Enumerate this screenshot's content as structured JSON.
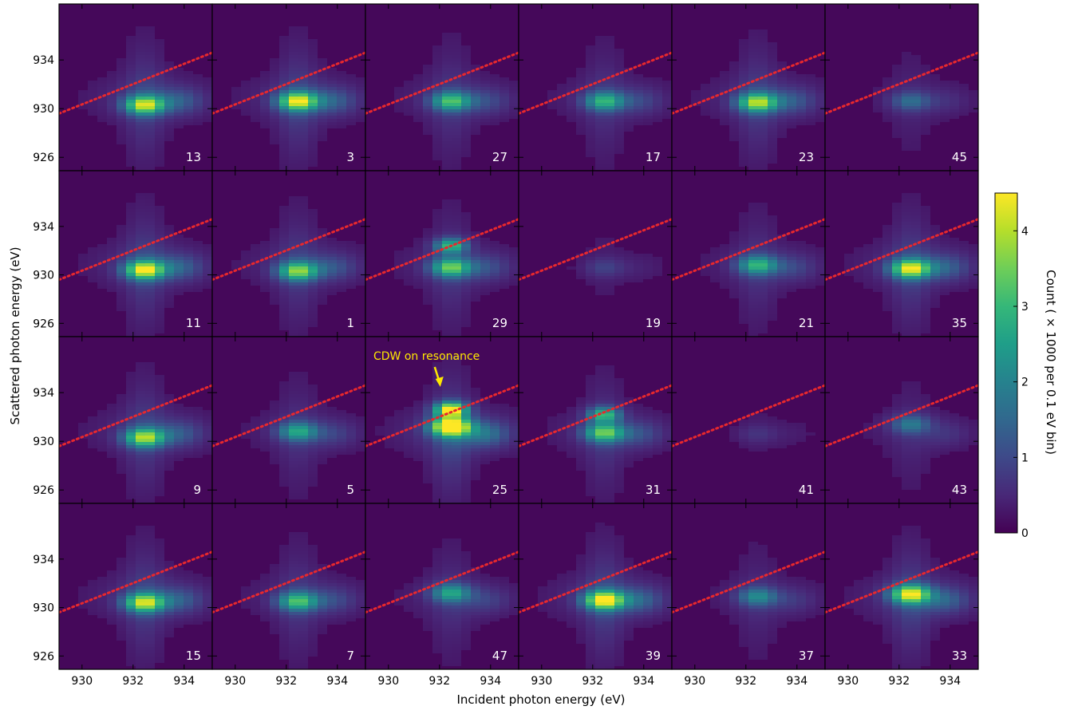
{
  "chart_data": {
    "type": "heatmap",
    "layout": "small-multiples grid, 4 rows x 6 columns",
    "xlabel": "Incident photon energy (eV)",
    "ylabel": "Scattered photon energy (eV)",
    "colorbar_label": "Count ( × 1000 per 0.1 eV bin)",
    "xlim": [
      929.1,
      935.1
    ],
    "ylim": [
      924.9,
      938.6
    ],
    "x_ticks": [
      "930",
      "932",
      "934"
    ],
    "y_ticks": [
      "934",
      "930",
      "926"
    ],
    "colorbar_ticks": [
      "0",
      "1",
      "2",
      "3",
      "4"
    ],
    "colorbar_range": [
      0,
      4.5
    ],
    "colormap": "viridis",
    "colorbar_colors": [
      "#440154",
      "#482878",
      "#3e4989",
      "#31688e",
      "#26828e",
      "#1f9e89",
      "#35b779",
      "#6ece58",
      "#b5de2b",
      "#fde725"
    ],
    "reference_line": {
      "style": "dotted",
      "color": "#e8282d",
      "x": [
        929.1,
        935.1
      ],
      "y": [
        929.6,
        934.6
      ]
    },
    "panels": [
      {
        "label": "13",
        "intensity": 0.75,
        "peak_y": 930.3,
        "upper_y": null
      },
      {
        "label": "3",
        "intensity": 0.78,
        "peak_y": 930.6,
        "upper_y": null
      },
      {
        "label": "27",
        "intensity": 0.55,
        "peak_y": 930.6,
        "upper_y": null
      },
      {
        "label": "17",
        "intensity": 0.5,
        "peak_y": 930.6,
        "upper_y": null
      },
      {
        "label": "23",
        "intensity": 0.7,
        "peak_y": 930.5,
        "upper_y": null
      },
      {
        "label": "45",
        "intensity": 0.25,
        "peak_y": 930.6,
        "upper_y": null
      },
      {
        "label": "11",
        "intensity": 0.8,
        "peak_y": 930.4,
        "upper_y": null
      },
      {
        "label": "1",
        "intensity": 0.65,
        "peak_y": 930.3,
        "upper_y": null
      },
      {
        "label": "29",
        "intensity": 0.6,
        "peak_y": 930.6,
        "upper_y": 932.4
      },
      {
        "label": "19",
        "intensity": 0.12,
        "peak_y": 930.6,
        "upper_y": null
      },
      {
        "label": "21",
        "intensity": 0.5,
        "peak_y": 930.8,
        "upper_y": null
      },
      {
        "label": "35",
        "intensity": 0.78,
        "peak_y": 930.5,
        "upper_y": null
      },
      {
        "label": "9",
        "intensity": 0.7,
        "peak_y": 930.3,
        "upper_y": null
      },
      {
        "label": "5",
        "intensity": 0.45,
        "peak_y": 930.8,
        "upper_y": null
      },
      {
        "label": "25",
        "intensity": 1.0,
        "peak_y": 931.2,
        "upper_y": 932.6
      },
      {
        "label": "31",
        "intensity": 0.6,
        "peak_y": 930.7,
        "upper_y": 932.2
      },
      {
        "label": "41",
        "intensity": 0.08,
        "peak_y": 930.6,
        "upper_y": null
      },
      {
        "label": "43",
        "intensity": 0.3,
        "peak_y": 931.4,
        "upper_y": null
      },
      {
        "label": "15",
        "intensity": 0.75,
        "peak_y": 930.4,
        "upper_y": null
      },
      {
        "label": "7",
        "intensity": 0.55,
        "peak_y": 930.5,
        "upper_y": null
      },
      {
        "label": "47",
        "intensity": 0.45,
        "peak_y": 931.2,
        "upper_y": null
      },
      {
        "label": "39",
        "intensity": 0.85,
        "peak_y": 930.6,
        "upper_y": null
      },
      {
        "label": "37",
        "intensity": 0.35,
        "peak_y": 930.9,
        "upper_y": null
      },
      {
        "label": "33",
        "intensity": 0.8,
        "peak_y": 931.1,
        "upper_y": null
      }
    ],
    "annotation": {
      "text": "CDW on resonance",
      "panel": "25",
      "color": "#ffe800"
    }
  }
}
